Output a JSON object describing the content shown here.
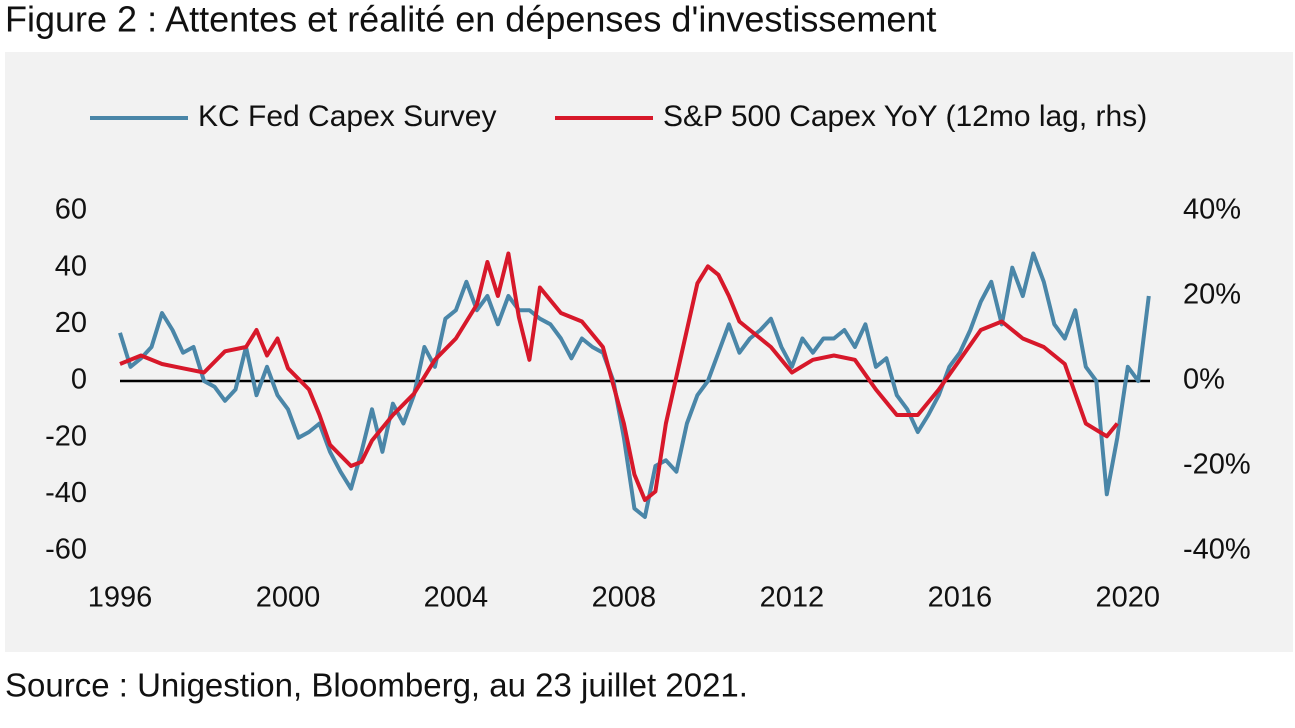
{
  "chart_data": {
    "type": "line",
    "title": "Figure 2 : Attentes et réalité en dépenses d'investissement",
    "source": "Source : Unigestion, Bloomberg, au 23 juillet 2021.",
    "legend": "top",
    "xlim": [
      1996,
      2020.6
    ],
    "xticks": [
      1996,
      2000,
      2004,
      2008,
      2012,
      2016,
      2020
    ],
    "ylim": [
      -60,
      60
    ],
    "yticks": [
      -60,
      -40,
      -20,
      0,
      20,
      40,
      60
    ],
    "y2lim": [
      -40,
      40
    ],
    "y2ticks": [
      {
        "value": -40,
        "label": "-40%"
      },
      {
        "value": -20,
        "label": "-20%"
      },
      {
        "value": 0,
        "label": "0%"
      },
      {
        "value": 20,
        "label": "20%"
      },
      {
        "value": 40,
        "label": "40%"
      }
    ],
    "series": [
      {
        "name": "KC Fed Capex Survey",
        "color": "#4a86a8",
        "x": [
          1996,
          1996.25,
          1996.5,
          1996.75,
          1997,
          1997.25,
          1997.5,
          1997.75,
          1998,
          1998.25,
          1998.5,
          1998.75,
          1999,
          1999.25,
          1999.5,
          1999.75,
          2000,
          2000.25,
          2000.5,
          2000.75,
          2001,
          2001.25,
          2001.5,
          2001.75,
          2002,
          2002.25,
          2002.5,
          2002.75,
          2003,
          2003.25,
          2003.5,
          2003.75,
          2004,
          2004.25,
          2004.5,
          2004.75,
          2005,
          2005.25,
          2005.5,
          2005.75,
          2006,
          2006.25,
          2006.5,
          2006.75,
          2007,
          2007.25,
          2007.5,
          2007.75,
          2008,
          2008.25,
          2008.5,
          2008.75,
          2009,
          2009.25,
          2009.5,
          2009.75,
          2010,
          2010.25,
          2010.5,
          2010.75,
          2011,
          2011.25,
          2011.5,
          2011.75,
          2012,
          2012.25,
          2012.5,
          2012.75,
          2013,
          2013.25,
          2013.5,
          2013.75,
          2014,
          2014.25,
          2014.5,
          2014.75,
          2015,
          2015.25,
          2015.5,
          2015.75,
          2016,
          2016.25,
          2016.5,
          2016.75,
          2017,
          2017.25,
          2017.5,
          2017.75,
          2018,
          2018.25,
          2018.5,
          2018.75,
          2019,
          2019.25,
          2019.5,
          2019.75,
          2020,
          2020.25,
          2020.5
        ],
        "values": [
          17,
          5,
          8,
          12,
          24,
          18,
          10,
          12,
          0,
          -2,
          -7,
          -3,
          12,
          -5,
          5,
          -5,
          -10,
          -20,
          -18,
          -15,
          -25,
          -32,
          -38,
          -25,
          -10,
          -25,
          -8,
          -15,
          -5,
          12,
          5,
          22,
          25,
          35,
          25,
          30,
          20,
          30,
          25,
          25,
          22,
          20,
          15,
          8,
          15,
          12,
          10,
          0,
          -20,
          -45,
          -48,
          -30,
          -28,
          -32,
          -15,
          -5,
          0,
          10,
          20,
          10,
          15,
          18,
          22,
          12,
          5,
          15,
          10,
          15,
          15,
          18,
          12,
          20,
          5,
          8,
          -5,
          -10,
          -18,
          -12,
          -5,
          5,
          10,
          18,
          28,
          35,
          20,
          40,
          30,
          45,
          35,
          20,
          15,
          25,
          5,
          0,
          -40,
          -20,
          5,
          0,
          30
        ]
      },
      {
        "name": "S&P 500 Capex YoY (12mo lag, rhs)",
        "color": "#d7182a",
        "axis": "y2",
        "x": [
          1996,
          1996.5,
          1997,
          1997.5,
          1998,
          1998.5,
          1999,
          1999.25,
          1999.5,
          1999.75,
          2000,
          2000.5,
          2000.75,
          2001,
          2001.5,
          2001.75,
          2002,
          2002.5,
          2003,
          2003.5,
          2004,
          2004.5,
          2004.75,
          2005,
          2005.25,
          2005.5,
          2005.75,
          2006,
          2006.5,
          2007,
          2007.5,
          2008,
          2008.25,
          2008.5,
          2008.75,
          2009,
          2009.5,
          2009.75,
          2010,
          2010.25,
          2010.5,
          2010.75,
          2011,
          2011.5,
          2012,
          2012.5,
          2013,
          2013.5,
          2014,
          2014.5,
          2015,
          2015.5,
          2016,
          2016.5,
          2017,
          2017.5,
          2018,
          2018.5,
          2019,
          2019.5,
          2019.75
        ],
        "values": [
          4,
          6,
          4,
          3,
          2,
          7,
          8,
          12,
          6,
          10,
          3,
          -2,
          -8,
          -15,
          -20,
          -19,
          -14,
          -8,
          -3,
          5,
          10,
          18,
          28,
          20,
          30,
          15,
          5,
          22,
          16,
          14,
          8,
          -10,
          -22,
          -28,
          -26,
          -10,
          12,
          23,
          27,
          25,
          20,
          14,
          12,
          8,
          2,
          5,
          6,
          5,
          -2,
          -8,
          -8,
          -2,
          5,
          12,
          14,
          10,
          8,
          4,
          -10,
          -13,
          -10
        ]
      }
    ]
  }
}
